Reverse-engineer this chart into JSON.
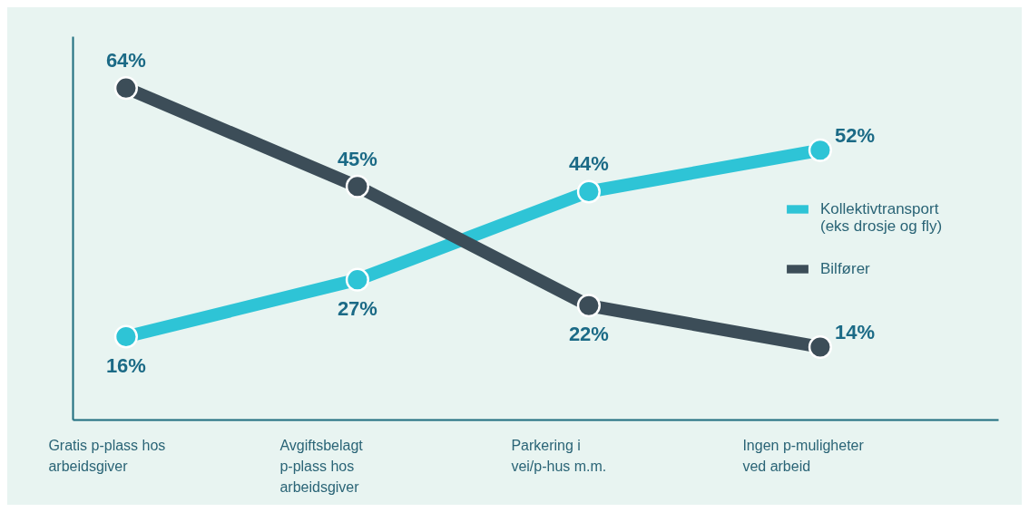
{
  "chart_data": {
    "type": "line",
    "categories": [
      "Gratis p-plass hos arbeidsgiver",
      "Avgiftsbelagt p-plass hos arbeidsgiver",
      "Parkering i vei/p-hus m.m.",
      "Ingen p-muligheter ved arbeid"
    ],
    "series": [
      {
        "name": "Kollektivtransport\n(eks drosje og fly)",
        "color": "#2ec4d6",
        "values": [
          16,
          27,
          44,
          52
        ],
        "value_labels": [
          "16%",
          "27%",
          "44%",
          "52%"
        ]
      },
      {
        "name": "Bilfører",
        "color": "#3c4d58",
        "values": [
          64,
          45,
          22,
          14
        ],
        "value_labels": [
          "64%",
          "45%",
          "22%",
          "14%"
        ]
      }
    ],
    "ylim": [
      0,
      74
    ],
    "tick_labels": "x",
    "legend": "right",
    "marker": "circle",
    "grid": false
  }
}
